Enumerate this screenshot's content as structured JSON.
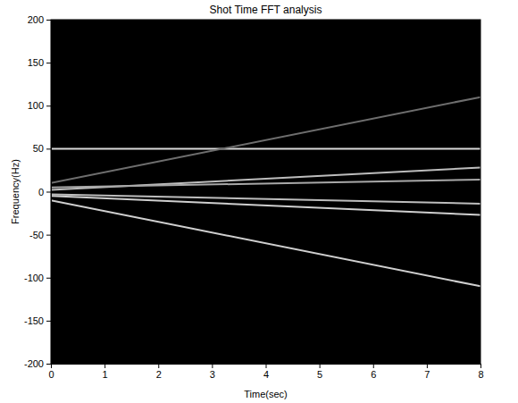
{
  "chart_data": {
    "type": "line",
    "title": "Shot Time FFT analysis",
    "x_label": "Time(sec)",
    "y_label": "Frequency(Hz)",
    "x": [
      0,
      8
    ],
    "series": [
      {
        "color": "#d8d8d8",
        "values": [
          50,
          50
        ]
      },
      {
        "color": "#6e6e6e",
        "values": [
          10,
          110
        ]
      },
      {
        "color": "#cfcfcf",
        "values": [
          -10,
          -110
        ]
      },
      {
        "color": "#bdbdbd",
        "values": [
          2,
          28
        ]
      },
      {
        "color": "#a8a8a8",
        "values": [
          5,
          14
        ]
      },
      {
        "color": "#bdbdbd",
        "values": [
          -3,
          -14
        ]
      },
      {
        "color": "#cfcfcf",
        "values": [
          -5,
          -27
        ]
      }
    ],
    "xlim": [
      0,
      8
    ],
    "xticks": [
      0,
      1,
      2,
      3,
      4,
      5,
      6,
      7,
      8
    ],
    "ylim": [
      -200,
      200
    ],
    "yticks": [
      -200,
      -150,
      -100,
      -50,
      0,
      50,
      100,
      150,
      200
    ],
    "grid": false
  }
}
